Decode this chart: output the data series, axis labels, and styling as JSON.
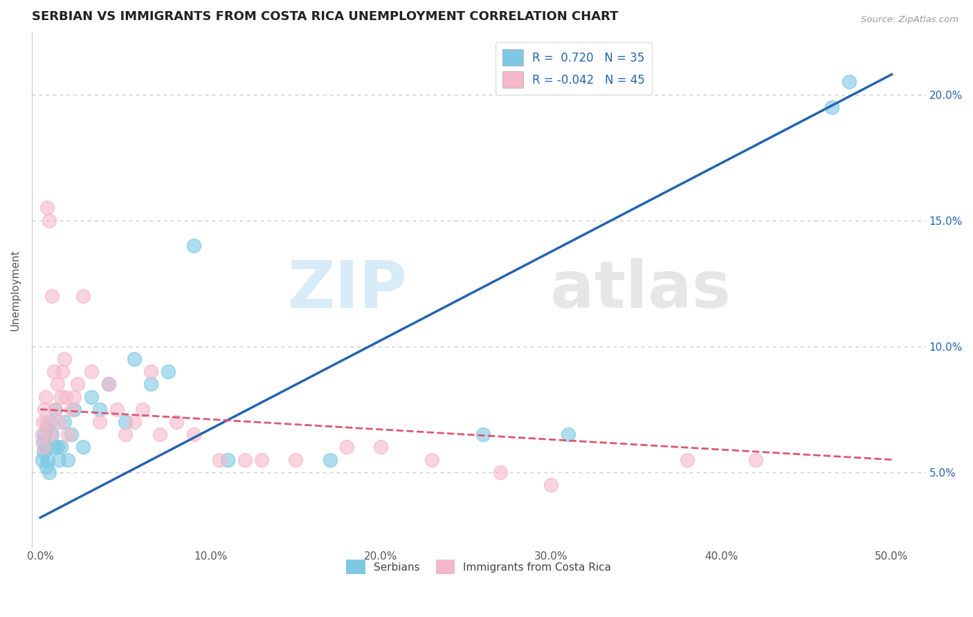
{
  "title": "SERBIAN VS IMMIGRANTS FROM COSTA RICA UNEMPLOYMENT CORRELATION CHART",
  "source": "Source: ZipAtlas.com",
  "xlabel_ticks": [
    "0.0%",
    "10.0%",
    "20.0%",
    "30.0%",
    "40.0%",
    "50.0%"
  ],
  "xlabel_vals": [
    0.0,
    10.0,
    20.0,
    30.0,
    40.0,
    50.0
  ],
  "ylabel_vals": [
    5.0,
    10.0,
    15.0,
    20.0
  ],
  "ylabel_right_ticks": [
    "5.0%",
    "10.0%",
    "15.0%",
    "20.0%"
  ],
  "xlim": [
    -0.5,
    52.0
  ],
  "ylim": [
    2.0,
    22.5
  ],
  "legend_label1": "Serbians",
  "legend_label2": "Immigrants from Costa Rica",
  "blue_color": "#7ec8e3",
  "pink_color": "#f5b8c8",
  "blue_line_color": "#2563ae",
  "pink_line_color": "#e05570",
  "watermark_zip": "ZIP",
  "watermark_atlas": "atlas",
  "title_fontsize": 13,
  "blue_scatter_x": [
    0.1,
    0.15,
    0.2,
    0.25,
    0.3,
    0.35,
    0.4,
    0.45,
    0.5,
    0.6,
    0.7,
    0.8,
    0.9,
    1.0,
    1.1,
    1.2,
    1.4,
    1.6,
    1.8,
    2.0,
    2.5,
    3.0,
    3.5,
    4.0,
    5.0,
    5.5,
    6.5,
    7.5,
    9.0,
    11.0,
    17.0,
    26.0,
    31.0,
    46.5,
    47.5
  ],
  "blue_scatter_y": [
    5.5,
    6.2,
    5.8,
    6.5,
    6.0,
    5.2,
    6.8,
    5.5,
    5.0,
    7.0,
    6.5,
    6.0,
    7.5,
    6.0,
    5.5,
    6.0,
    7.0,
    5.5,
    6.5,
    7.5,
    6.0,
    8.0,
    7.5,
    8.5,
    7.0,
    9.5,
    8.5,
    9.0,
    14.0,
    5.5,
    5.5,
    6.5,
    6.5,
    19.5,
    20.5
  ],
  "pink_scatter_x": [
    0.1,
    0.15,
    0.2,
    0.25,
    0.3,
    0.35,
    0.4,
    0.5,
    0.6,
    0.7,
    0.8,
    0.9,
    1.0,
    1.1,
    1.2,
    1.3,
    1.4,
    1.5,
    1.6,
    1.8,
    2.0,
    2.2,
    2.5,
    3.0,
    3.5,
    4.0,
    4.5,
    5.0,
    5.5,
    6.0,
    6.5,
    7.0,
    8.0,
    9.0,
    10.5,
    12.0,
    13.0,
    15.0,
    18.0,
    20.0,
    23.0,
    27.0,
    30.0,
    38.0,
    42.0
  ],
  "pink_scatter_y": [
    6.5,
    7.0,
    6.0,
    7.5,
    8.0,
    7.0,
    15.5,
    15.0,
    6.5,
    12.0,
    9.0,
    7.5,
    8.5,
    7.0,
    8.0,
    9.0,
    9.5,
    8.0,
    6.5,
    7.5,
    8.0,
    8.5,
    12.0,
    9.0,
    7.0,
    8.5,
    7.5,
    6.5,
    7.0,
    7.5,
    9.0,
    6.5,
    7.0,
    6.5,
    5.5,
    5.5,
    5.5,
    5.5,
    6.0,
    6.0,
    5.5,
    5.0,
    4.5,
    5.5,
    5.5
  ],
  "blue_trendline_x": [
    0.0,
    50.0
  ],
  "blue_trendline_y": [
    3.2,
    20.8
  ],
  "pink_trendline_x": [
    0.0,
    50.0
  ],
  "pink_trendline_y": [
    7.5,
    5.5
  ],
  "grid_color": "#c8c8c8",
  "background_color": "#ffffff"
}
